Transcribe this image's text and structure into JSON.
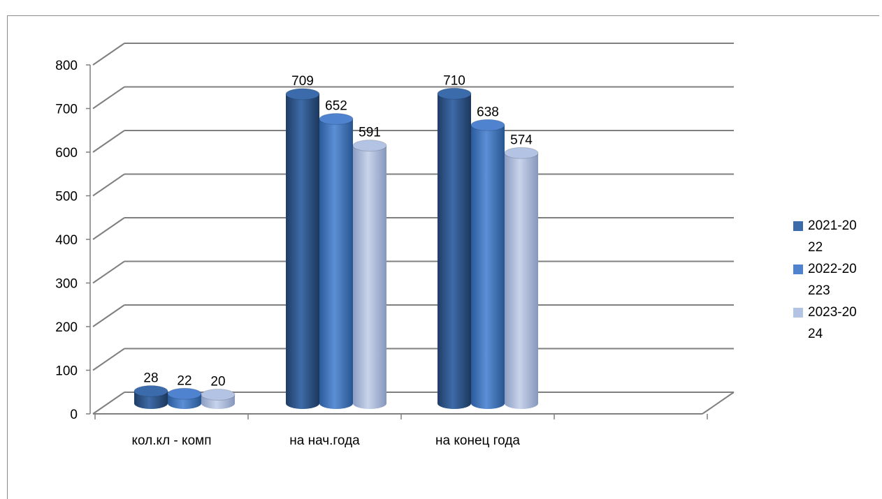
{
  "chart_data": {
    "type": "bar",
    "categories": [
      "кол.кл - комп",
      "на нач.года",
      "на конец года",
      ""
    ],
    "series": [
      {
        "name": "2021-2022",
        "values": [
          28,
          709,
          710,
          null
        ],
        "color": "#3c6bab"
      },
      {
        "name": "2022-20223",
        "values": [
          22,
          652,
          638,
          null
        ],
        "color": "#4f83cf"
      },
      {
        "name": "2023-2024",
        "values": [
          20,
          591,
          574,
          null
        ],
        "color": "#b3c3e3"
      }
    ],
    "yticks": [
      "0",
      "100",
      "200",
      "300",
      "400",
      "500",
      "600",
      "700",
      "800"
    ],
    "ylim": [
      0,
      800
    ],
    "data_labels": [
      [
        "28",
        "709",
        "710"
      ],
      [
        "22",
        "652",
        "638"
      ],
      [
        "20",
        "591",
        "574"
      ]
    ],
    "grid": true,
    "legend_position": "right",
    "style": "3d-cylinder"
  },
  "legend": {
    "items": [
      {
        "label": "2021-2022",
        "color": "#3c6bab"
      },
      {
        "label": "2022-20223",
        "color": "#4f83cf"
      },
      {
        "label": "2023-2024",
        "color": "#b3c3e3"
      }
    ]
  }
}
